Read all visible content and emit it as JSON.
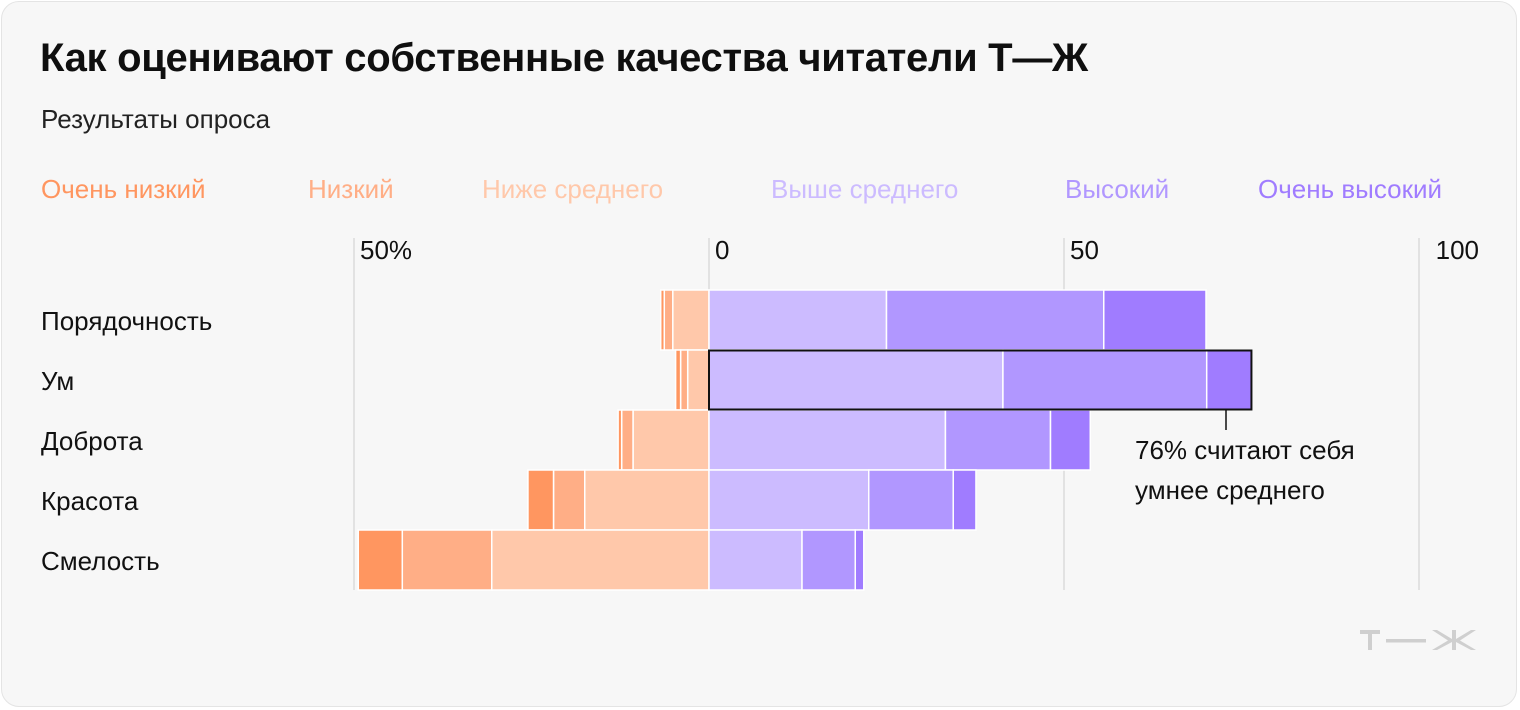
{
  "title": "Как оценивают собственные качества читатели Т—Ж",
  "subtitle": "Результаты опроса",
  "legend": [
    {
      "label": "Очень низкий",
      "color": "#ff9660"
    },
    {
      "label": "Низкий",
      "color": "#ffae86"
    },
    {
      "label": "Ниже среднего",
      "color": "#ffc8aa"
    },
    {
      "label": "Выше среднего",
      "color": "#ccbbff"
    },
    {
      "label": "Высокий",
      "color": "#b197ff"
    },
    {
      "label": "Очень высокий",
      "color": "#a07cff"
    }
  ],
  "logo_text": "Т—Ж",
  "chart_data": {
    "type": "bar",
    "orientation": "horizontal",
    "stacking": "diverging",
    "categories": [
      "Порядочность",
      "Ум",
      "Доброта",
      "Красота",
      "Смелость"
    ],
    "x_ticks": [
      "50%",
      "0",
      "50",
      "100"
    ],
    "xlim": [
      -50,
      100
    ],
    "grid": true,
    "series": [
      {
        "name": "Очень низкий",
        "values": [
          -0.5,
          -0.7,
          -0.5,
          -3.6,
          -6.2
        ],
        "color": "#ff9660"
      },
      {
        "name": "Низкий",
        "values": [
          -1.2,
          -1.0,
          -1.6,
          -4.4,
          -12.6
        ],
        "color": "#ffae86"
      },
      {
        "name": "Ниже среднего",
        "values": [
          -5.1,
          -3.0,
          -10.7,
          -17.5,
          -30.6
        ],
        "color": "#ffc8aa"
      },
      {
        "name": "Выше среднего",
        "values": [
          25.0,
          41.4,
          33.3,
          22.5,
          13.1
        ],
        "color": "#ccbbff"
      },
      {
        "name": "Высокий",
        "values": [
          30.6,
          28.7,
          14.8,
          11.9,
          7.5
        ],
        "color": "#b197ff"
      },
      {
        "name": "Очень высокий",
        "values": [
          14.4,
          6.3,
          5.6,
          3.2,
          1.2
        ],
        "color": "#a07cff"
      }
    ],
    "highlight": {
      "category": "Ум"
    },
    "annotation": {
      "line1": "76% считают себя",
      "line2": "умнее среднего"
    }
  }
}
